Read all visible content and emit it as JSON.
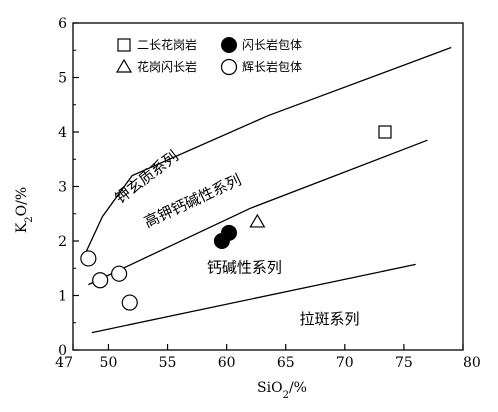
{
  "chart_data": {
    "type": "scatter",
    "xlabel": "SiO2/%",
    "ylabel": "K2O/%",
    "xlim": [
      47,
      80
    ],
    "ylim": [
      0,
      6
    ],
    "x_ticks": [
      "47",
      "50",
      "55",
      "60",
      "65",
      "70",
      "75",
      "80"
    ],
    "x_tick_values": [
      47,
      50,
      55,
      60,
      65,
      70,
      75,
      80
    ],
    "y_ticks": [
      "0",
      "1",
      "2",
      "3",
      "4",
      "5",
      "6"
    ],
    "y_tick_values": [
      0,
      1,
      2,
      3,
      4,
      5,
      6
    ],
    "boundaries": [
      {
        "points": [
          [
            48.0,
            1.75
          ],
          [
            49.5,
            2.45
          ],
          [
            52.0,
            3.2
          ],
          [
            63.5,
            4.3
          ],
          [
            79.0,
            5.55
          ]
        ]
      },
      {
        "points": [
          [
            48.3,
            1.2
          ],
          [
            62.0,
            2.6
          ],
          [
            77.0,
            3.85
          ]
        ]
      },
      {
        "points": [
          [
            48.6,
            0.32
          ],
          [
            76.0,
            1.57
          ]
        ]
      }
    ],
    "region_labels": [
      {
        "text": "钾玄质系列",
        "x": 53.5,
        "y": 3.1,
        "angle": -38
      },
      {
        "text": "高钾钙碱性系列",
        "x": 57.3,
        "y": 2.65,
        "angle": -25
      },
      {
        "text": "钙碱性系列",
        "x": 61.5,
        "y": 1.42,
        "angle": 0
      },
      {
        "text": "拉斑系列",
        "x": 68.7,
        "y": 0.48,
        "angle": 0
      }
    ],
    "series": [
      {
        "name": "二长花岗岩",
        "marker": "square-open",
        "points": [
          [
            73.4,
            4.0
          ]
        ]
      },
      {
        "name": "花岗闪长岩",
        "marker": "triangle-open",
        "points": [
          [
            62.6,
            2.35
          ]
        ]
      },
      {
        "name": "闪长岩包体",
        "marker": "circle-filled",
        "points": [
          [
            59.6,
            2.0
          ],
          [
            60.2,
            2.15
          ]
        ]
      },
      {
        "name": "辉长岩包体",
        "marker": "circle-open",
        "points": [
          [
            48.3,
            1.68
          ],
          [
            49.3,
            1.28
          ],
          [
            50.9,
            1.4
          ],
          [
            51.8,
            0.87
          ]
        ]
      }
    ],
    "legend_placement": "top-left",
    "grid": false
  }
}
